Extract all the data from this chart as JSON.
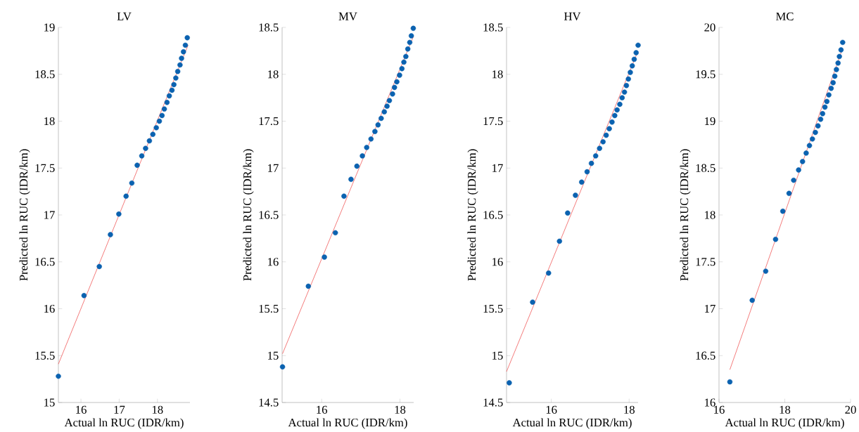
{
  "chart_data": [
    {
      "type": "scatter",
      "title": "LV",
      "xlabel": "Actual ln RUC (IDR/km)",
      "ylabel": "Predicted ln RUC (IDR/km)",
      "xlim": [
        15.41,
        18.85
      ],
      "ylim": [
        15,
        19
      ],
      "xticks": [
        16,
        17,
        18
      ],
      "yticks": [
        15,
        15.5,
        16,
        16.5,
        17,
        17.5,
        18,
        18.5,
        19
      ],
      "marker": "circle",
      "grid": false,
      "series": [
        {
          "color": "#0b62b0",
          "x": [
            15.41,
            16.08,
            16.48,
            16.77,
            16.99,
            17.18,
            17.33,
            17.47,
            17.59,
            17.69,
            17.79,
            17.88,
            17.97,
            18.05,
            18.12,
            18.18,
            18.25,
            18.31,
            18.38,
            18.43,
            18.48,
            18.53,
            18.59,
            18.63,
            18.68,
            18.73,
            18.78
          ],
          "values": [
            15.28,
            16.14,
            16.45,
            16.79,
            17.01,
            17.2,
            17.34,
            17.53,
            17.63,
            17.71,
            17.79,
            17.86,
            17.93,
            18.0,
            18.06,
            18.13,
            18.2,
            18.27,
            18.33,
            18.39,
            18.46,
            18.53,
            18.6,
            18.67,
            18.74,
            18.81,
            18.89
          ]
        },
        {
          "type": "line",
          "marker": "none",
          "color": "#f05a5a",
          "x": [
            15.41,
            18.8
          ],
          "values": [
            15.41,
            18.81
          ]
        }
      ]
    },
    {
      "type": "scatter",
      "title": "MV",
      "xlabel": "Actual ln RUC (IDR/km)",
      "ylabel": "Predicted ln RUC (IDR/km)",
      "xlim": [
        14.99,
        18.35
      ],
      "ylim": [
        14.5,
        18.5
      ],
      "xticks": [
        16,
        18
      ],
      "yticks": [
        14.5,
        15,
        15.5,
        16,
        16.5,
        17,
        17.5,
        18,
        18.5
      ],
      "marker": "circle",
      "grid": false,
      "series": [
        {
          "color": "#0b62b0",
          "x": [
            15.0,
            15.66,
            16.07,
            16.35,
            16.57,
            16.75,
            16.9,
            17.04,
            17.15,
            17.26,
            17.36,
            17.44,
            17.52,
            17.6,
            17.67,
            17.73,
            17.81,
            17.86,
            17.92,
            17.99,
            18.05,
            18.1,
            18.15,
            18.2,
            18.25,
            18.29,
            18.34
          ],
          "values": [
            14.88,
            15.74,
            16.05,
            16.31,
            16.7,
            16.88,
            17.02,
            17.13,
            17.22,
            17.31,
            17.39,
            17.46,
            17.53,
            17.6,
            17.66,
            17.72,
            17.79,
            17.86,
            17.92,
            17.99,
            18.06,
            18.13,
            18.19,
            18.27,
            18.34,
            18.41,
            18.49
          ]
        },
        {
          "type": "line",
          "marker": "none",
          "color": "#f05a5a",
          "x": [
            15.0,
            18.34
          ],
          "values": [
            15.02,
            18.4
          ]
        }
      ]
    },
    {
      "type": "scatter",
      "title": "HV",
      "xlabel": "Actual ln RUC (IDR/km)",
      "ylabel": "Predicted ln RUC (IDR/km)",
      "xlim": [
        14.85,
        18.23
      ],
      "ylim": [
        14.5,
        18.5
      ],
      "xticks": [
        16,
        18
      ],
      "yticks": [
        14.5,
        15,
        15.5,
        16,
        16.5,
        17,
        17.5,
        18,
        18.5
      ],
      "marker": "circle",
      "grid": false,
      "series": [
        {
          "color": "#0b62b0",
          "x": [
            14.92,
            15.52,
            15.93,
            16.21,
            16.42,
            16.62,
            16.78,
            16.92,
            17.03,
            17.14,
            17.24,
            17.33,
            17.41,
            17.49,
            17.56,
            17.63,
            17.69,
            17.76,
            17.82,
            17.88,
            17.93,
            17.98,
            18.03,
            18.08,
            18.13,
            18.18,
            18.23
          ],
          "values": [
            14.71,
            15.57,
            15.88,
            16.22,
            16.52,
            16.71,
            16.85,
            16.96,
            17.05,
            17.13,
            17.21,
            17.28,
            17.35,
            17.42,
            17.49,
            17.56,
            17.62,
            17.68,
            17.75,
            17.81,
            17.88,
            17.95,
            18.02,
            18.09,
            18.16,
            18.23,
            18.31
          ]
        },
        {
          "type": "line",
          "marker": "none",
          "color": "#f05a5a",
          "x": [
            14.85,
            18.2
          ],
          "values": [
            14.83,
            18.22
          ]
        }
      ]
    },
    {
      "type": "scatter",
      "title": "MC",
      "xlabel": "Actual ln RUC (IDR/km)",
      "ylabel": "Predicted ln RUC (IDR/km)",
      "xlim": [
        16,
        20
      ],
      "ylim": [
        16,
        20
      ],
      "xticks": [
        16,
        18,
        20
      ],
      "yticks": [
        16,
        16.5,
        17,
        17.5,
        18,
        18.5,
        19,
        19.5,
        20
      ],
      "marker": "circle",
      "grid": false,
      "series": [
        {
          "color": "#0b62b0",
          "x": [
            16.33,
            17.01,
            17.42,
            17.72,
            17.94,
            18.13,
            18.27,
            18.42,
            18.54,
            18.65,
            18.75,
            18.84,
            18.93,
            19.01,
            19.09,
            19.15,
            19.22,
            19.28,
            19.34,
            19.41,
            19.47,
            19.52,
            19.57,
            19.62,
            19.66,
            19.71,
            19.76
          ],
          "values": [
            16.22,
            17.09,
            17.4,
            17.74,
            18.04,
            18.23,
            18.37,
            18.48,
            18.57,
            18.66,
            18.74,
            18.81,
            18.88,
            18.95,
            19.02,
            19.08,
            19.15,
            19.21,
            19.28,
            19.35,
            19.41,
            19.48,
            19.55,
            19.62,
            19.69,
            19.76,
            19.84
          ]
        },
        {
          "type": "line",
          "marker": "none",
          "color": "#f05a5a",
          "x": [
            16.33,
            19.76
          ],
          "values": [
            16.35,
            19.78
          ]
        }
      ]
    }
  ]
}
